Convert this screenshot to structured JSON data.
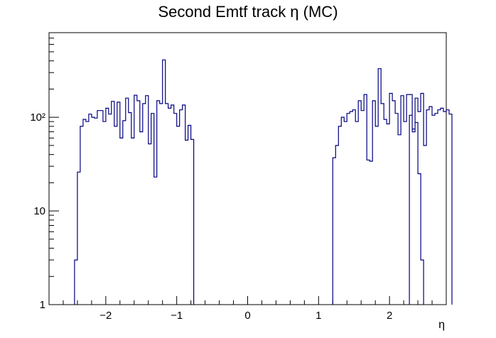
{
  "chart_data": {
    "type": "step-histogram",
    "title": "Second Emtf track η (MC)",
    "xlabel": "η",
    "ylabel": "",
    "log_y": true,
    "xlim": [
      -2.8,
      2.8
    ],
    "ylim": [
      1,
      800
    ],
    "line_color": "#000080",
    "x_ticks": [
      {
        "v": -2,
        "label": "−2"
      },
      {
        "v": -1,
        "label": "−1"
      },
      {
        "v": 0,
        "label": "0"
      },
      {
        "v": 1,
        "label": "1"
      },
      {
        "v": 2,
        "label": "2"
      }
    ],
    "y_ticks": [
      {
        "v": 1,
        "label": "1"
      },
      {
        "v": 10,
        "label": "10"
      },
      {
        "v": 100,
        "label": "10²"
      }
    ],
    "bin_width": 0.04,
    "segments": [
      {
        "start": -2.44,
        "values": [
          3,
          26,
          80,
          95,
          90,
          108,
          100,
          98,
          118,
          118,
          90,
          125,
          108,
          148,
          80,
          145,
          60,
          92,
          160,
          112,
          60,
          172,
          150,
          70,
          140,
          170,
          52,
          110,
          23,
          150,
          140,
          410,
          140,
          125,
          135,
          110,
          80,
          120,
          135,
          57,
          82,
          58
        ]
      },
      {
        "start": 1.2,
        "values": [
          37,
          50,
          80,
          100,
          90,
          110,
          115,
          120,
          90,
          150,
          118,
          175,
          35,
          34,
          150,
          80,
          330,
          140,
          95,
          85,
          180,
          150,
          110,
          65,
          170,
          90,
          175,
          175,
          70,
          160,
          115,
          180,
          50,
          120,
          130,
          105,
          110,
          120,
          125,
          115,
          120,
          108
        ]
      },
      {
        "start": 2.28,
        "values": [
          105,
          75,
          88,
          25,
          3
        ]
      }
    ]
  }
}
